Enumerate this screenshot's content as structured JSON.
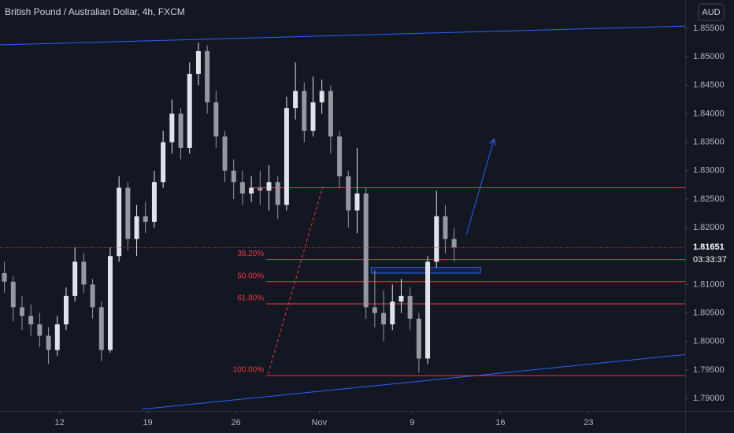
{
  "chart_data": {
    "type": "candlestick",
    "title": "British Pound / Australian Dollar, 4h, FXCM",
    "currency": "AUD",
    "x": [
      0,
      1,
      2,
      3,
      4,
      5,
      6,
      7,
      8,
      9,
      10,
      11,
      12,
      13,
      14,
      15,
      16,
      17,
      18,
      19,
      20,
      21,
      22,
      23,
      24,
      25,
      26,
      27,
      28,
      29,
      30,
      31,
      32,
      33,
      34,
      35,
      36,
      37,
      38,
      39,
      40,
      41,
      42,
      43,
      44,
      45,
      46,
      47,
      48,
      49,
      50,
      51
    ],
    "open": [
      1.812,
      1.8105,
      1.806,
      1.8045,
      1.803,
      1.801,
      1.7985,
      1.803,
      1.808,
      1.814,
      1.81,
      1.806,
      1.7985,
      1.815,
      1.827,
      1.818,
      1.822,
      1.821,
      1.828,
      1.835,
      1.84,
      1.834,
      1.847,
      1.851,
      1.842,
      1.836,
      1.83,
      1.828,
      1.826,
      1.827,
      1.8265,
      1.828,
      1.824,
      1.841,
      1.844,
      1.837,
      1.842,
      1.844,
      1.836,
      1.829,
      1.823,
      1.826,
      1.806,
      1.805,
      1.803,
      1.807,
      1.808,
      1.804,
      1.797,
      1.814,
      1.822,
      1.818
    ],
    "high": [
      1.814,
      1.8115,
      1.808,
      1.8065,
      1.805,
      1.8025,
      1.8045,
      1.8095,
      1.8165,
      1.8155,
      1.811,
      1.807,
      1.8165,
      1.829,
      1.828,
      1.824,
      1.8245,
      1.83,
      1.837,
      1.8425,
      1.841,
      1.849,
      1.8525,
      1.852,
      1.844,
      1.837,
      1.832,
      1.83,
      1.829,
      1.83,
      1.831,
      1.829,
      1.843,
      1.849,
      1.8455,
      1.8465,
      1.846,
      1.845,
      1.837,
      1.83,
      1.834,
      1.827,
      1.8125,
      1.809,
      1.81,
      1.811,
      1.8095,
      1.805,
      1.815,
      1.8265,
      1.824,
      1.82
    ],
    "low": [
      1.8085,
      1.8035,
      1.802,
      1.801,
      1.799,
      1.796,
      1.7975,
      1.802,
      1.807,
      1.8085,
      1.804,
      1.7965,
      1.798,
      1.814,
      1.816,
      1.815,
      1.819,
      1.82,
      1.827,
      1.833,
      1.832,
      1.833,
      1.845,
      1.84,
      1.834,
      1.828,
      1.825,
      1.824,
      1.8245,
      1.824,
      1.823,
      1.8215,
      1.823,
      1.839,
      1.835,
      1.836,
      1.84,
      1.833,
      1.827,
      1.82,
      1.819,
      1.804,
      1.8025,
      1.8,
      1.802,
      1.805,
      1.802,
      1.7945,
      1.796,
      1.813,
      1.8155,
      1.814
    ],
    "close": [
      1.8105,
      1.806,
      1.8045,
      1.803,
      1.801,
      1.7985,
      1.803,
      1.808,
      1.814,
      1.81,
      1.806,
      1.7985,
      1.815,
      1.827,
      1.818,
      1.822,
      1.821,
      1.828,
      1.835,
      1.84,
      1.834,
      1.847,
      1.851,
      1.842,
      1.836,
      1.83,
      1.828,
      1.826,
      1.827,
      1.8265,
      1.828,
      1.824,
      1.841,
      1.844,
      1.837,
      1.842,
      1.844,
      1.836,
      1.829,
      1.823,
      1.826,
      1.806,
      1.805,
      1.803,
      1.807,
      1.808,
      1.804,
      1.797,
      1.814,
      1.822,
      1.818,
      1.8165
    ],
    "up_color": "#e0e3eb",
    "down_color": "#9598a1",
    "xlim": [
      -0.5,
      77.2
    ],
    "xticks": [
      {
        "value": 6.25,
        "label": "12"
      },
      {
        "value": 16.25,
        "label": "19"
      },
      {
        "value": 26.25,
        "label": "26"
      },
      {
        "value": 35.7,
        "label": "Nov"
      },
      {
        "value": 46.25,
        "label": "9"
      },
      {
        "value": 56.25,
        "label": "16"
      },
      {
        "value": 66.25,
        "label": "23"
      }
    ],
    "ylim": [
      1.78779,
      1.85998
    ],
    "yticks": [
      {
        "value": 1.79,
        "label": "1.79000"
      },
      {
        "value": 1.795,
        "label": "1.79500"
      },
      {
        "value": 1.8,
        "label": "1.80000"
      },
      {
        "value": 1.805,
        "label": "1.80500"
      },
      {
        "value": 1.81,
        "label": "1.81000"
      },
      {
        "value": 1.82,
        "label": "1.82000"
      },
      {
        "value": 1.825,
        "label": "1.82500"
      },
      {
        "value": 1.83,
        "label": "1.83000"
      },
      {
        "value": 1.835,
        "label": "1.83500"
      },
      {
        "value": 1.84,
        "label": "1.84000"
      },
      {
        "value": 1.845,
        "label": "1.84500"
      },
      {
        "value": 1.85,
        "label": "1.85000"
      },
      {
        "value": 1.855,
        "label": "1.85500"
      }
    ],
    "grid": false,
    "last_price": {
      "value": 1.81651,
      "label": "1.81651",
      "color": "#f23645"
    },
    "countdown": "03:33:37",
    "drawings": {
      "trendlines": [
        {
          "x": [
            -0.5,
            77.2
          ],
          "y": [
            1.8521,
            1.8554
          ],
          "color": "#2962ff"
        },
        {
          "x": [
            15.6,
            77.2
          ],
          "y": [
            1.7881,
            1.7977
          ],
          "color": "#2962ff"
        }
      ],
      "dashed": {
        "x": [
          29.9,
          36.1
        ],
        "y": [
          1.7943,
          1.8272
        ],
        "color": "#f23645"
      },
      "arrow": {
        "x": [
          52.4,
          55.5
        ],
        "y": [
          1.8188,
          1.8354
        ],
        "color": "#2962ff"
      },
      "rectangle": {
        "x": [
          41.6,
          54.0
        ],
        "y": [
          1.813,
          1.812
        ],
        "color": "#2962ff"
      },
      "hline": {
        "x_start": 28.1,
        "value": 1.827,
        "color": "#f23645"
      },
      "fib": {
        "x_start": 29.7,
        "color": "#f23645",
        "levels": [
          {
            "value": 1.8144,
            "label": "38.20%"
          },
          {
            "value": 1.8105,
            "label": "50.00%"
          },
          {
            "value": 1.8066,
            "label": "61.80%"
          },
          {
            "value": 1.794,
            "label": "100.00%"
          }
        ]
      }
    }
  }
}
